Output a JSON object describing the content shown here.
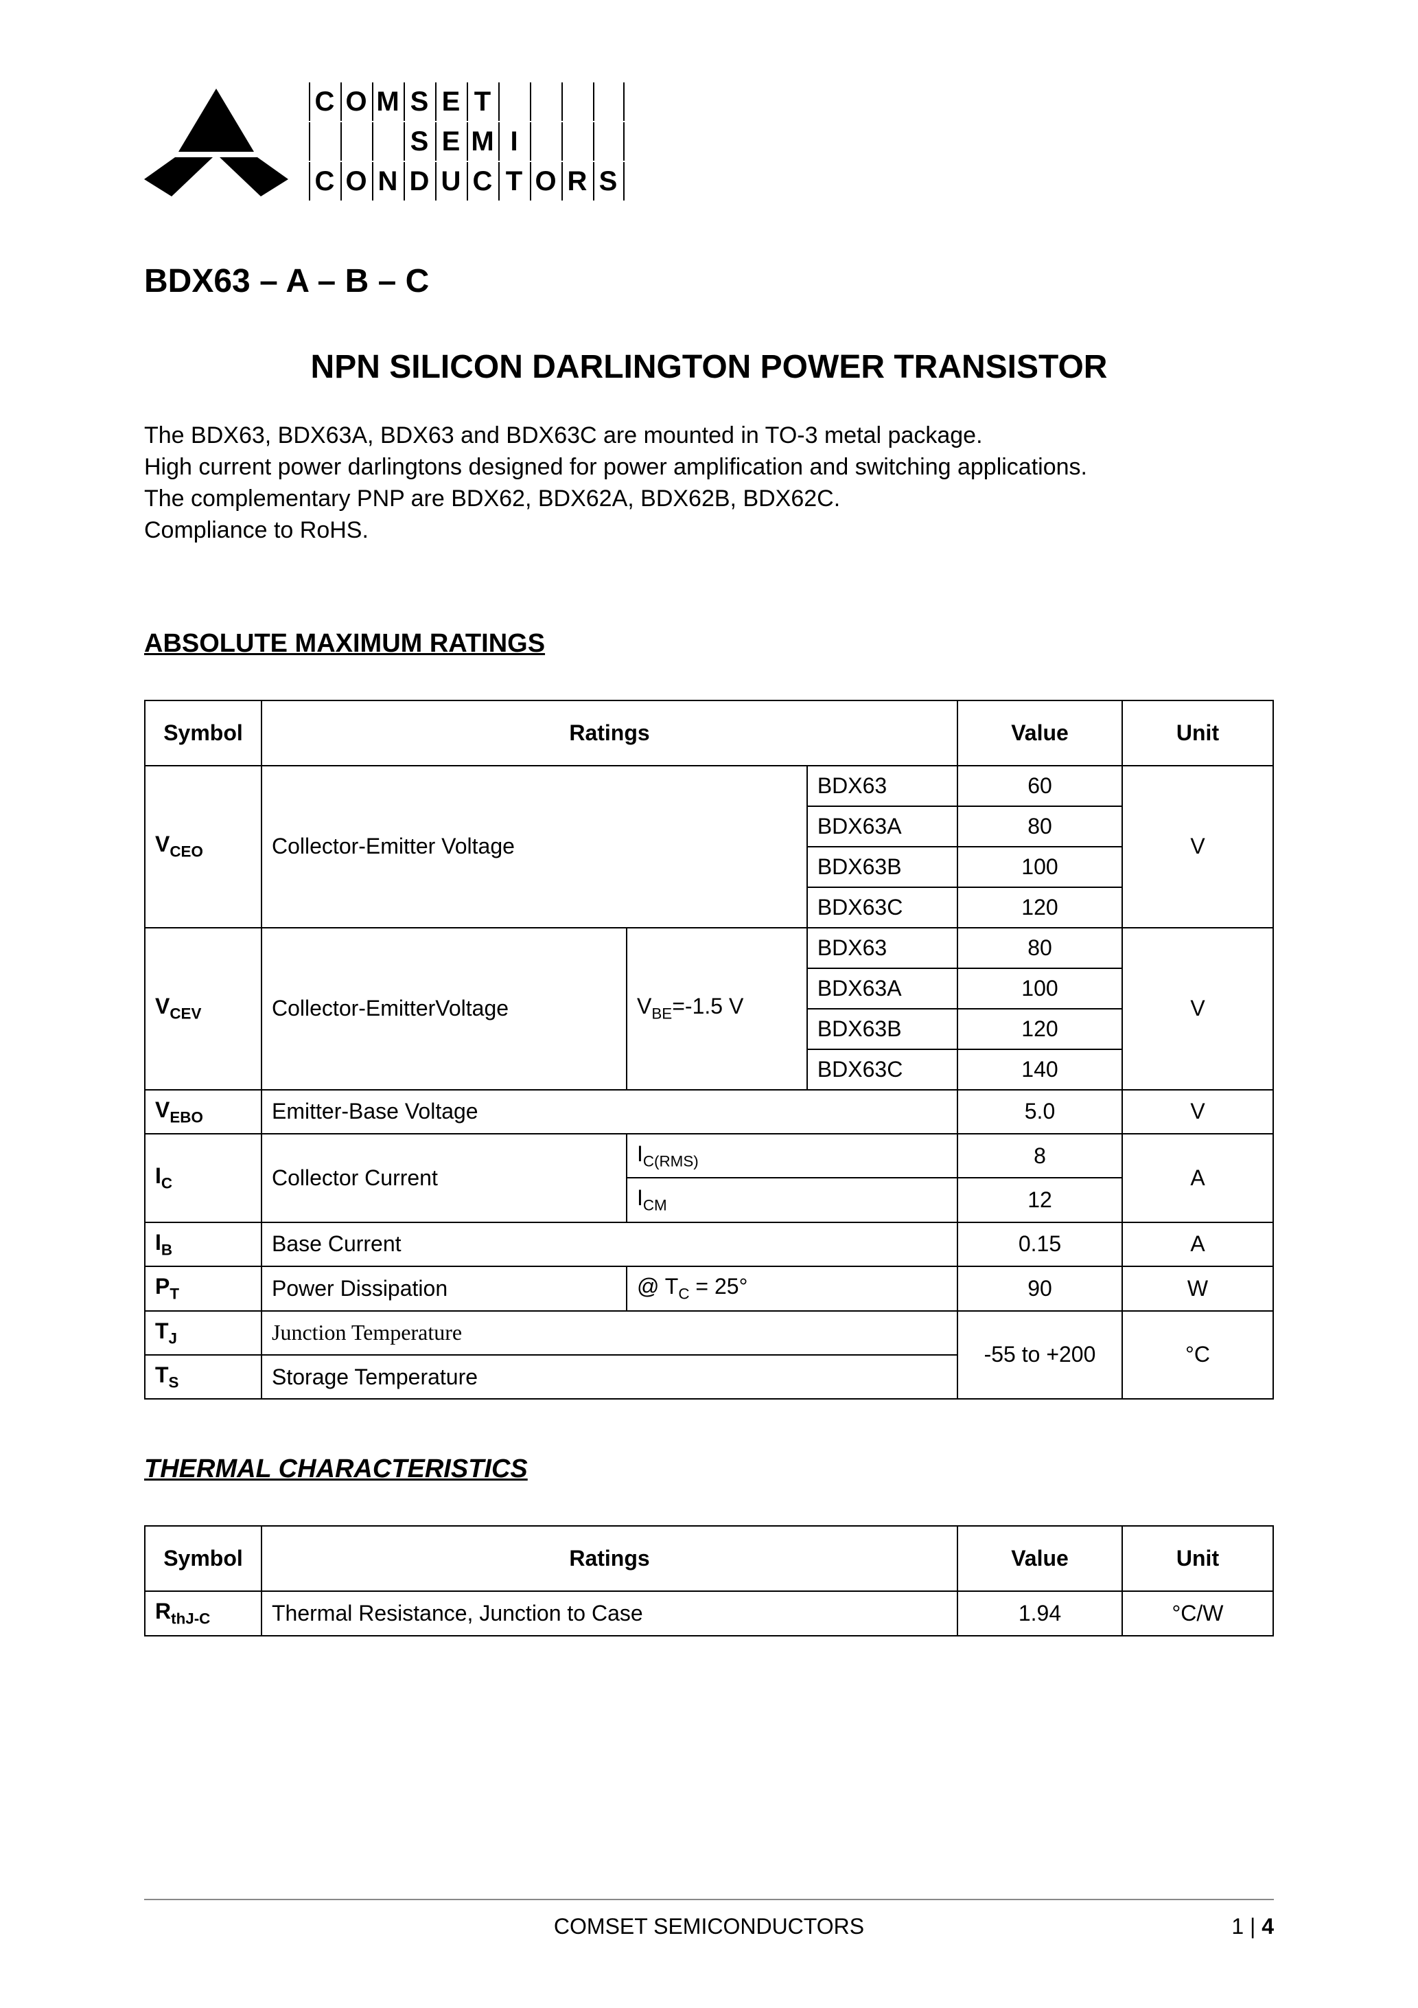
{
  "logo": {
    "row1": [
      "C",
      "O",
      "M",
      "S",
      "E",
      "T",
      "",
      "",
      "",
      ""
    ],
    "row2": [
      "",
      "",
      "",
      "S",
      "E",
      "M",
      "I",
      "",
      "",
      ""
    ],
    "row3": [
      "C",
      "O",
      "N",
      "D",
      "U",
      "C",
      "T",
      "O",
      "R",
      "S"
    ]
  },
  "part_number": "BDX63 – A – B – C",
  "title": "NPN SILICON DARLINGTON POWER TRANSISTOR",
  "description_lines": [
    "The BDX63, BDX63A, BDX63 and BDX63C are mounted in TO-3 metal package.",
    "High current power darlingtons designed for power amplification and switching applications.",
    "The complementary PNP are BDX62, BDX62A, BDX62B, BDX62C.",
    "Compliance to RoHS."
  ],
  "amr": {
    "heading": "ABSOLUTE MAXIMUM RATINGS",
    "headers": {
      "symbol": "Symbol",
      "ratings": "Ratings",
      "value": "Value",
      "unit": "Unit"
    },
    "vceo": {
      "symbol": "V",
      "sub": "CEO",
      "label": "Collector-Emitter Voltage",
      "rows": [
        {
          "part": "BDX63",
          "value": "60"
        },
        {
          "part": "BDX63A",
          "value": "80"
        },
        {
          "part": "BDX63B",
          "value": "100"
        },
        {
          "part": "BDX63C",
          "value": "120"
        }
      ],
      "unit": "V"
    },
    "vcev": {
      "symbol": "V",
      "sub": "CEV",
      "label": "Collector-EmitterVoltage",
      "cond_prefix": "V",
      "cond_sub": "BE",
      "cond_suffix": "=-1.5 V",
      "rows": [
        {
          "part": "BDX63",
          "value": "80"
        },
        {
          "part": "BDX63A",
          "value": "100"
        },
        {
          "part": "BDX63B",
          "value": "120"
        },
        {
          "part": "BDX63C",
          "value": "140"
        }
      ],
      "unit": "V"
    },
    "vebo": {
      "symbol": "V",
      "sub": "EBO",
      "label": "Emitter-Base Voltage",
      "value": "5.0",
      "unit": "V"
    },
    "ic": {
      "symbol": "I",
      "sub": "C",
      "label": "Collector Current",
      "rows": [
        {
          "cond_prefix": "I",
          "cond_sub": "C(RMS)",
          "value": "8"
        },
        {
          "cond_prefix": "I",
          "cond_sub": "CM",
          "value": "12"
        }
      ],
      "unit": "A"
    },
    "ib": {
      "symbol": "I",
      "sub": "B",
      "label": "Base Current",
      "value": "0.15",
      "unit": "A"
    },
    "pt": {
      "symbol": "P",
      "sub": "T",
      "label": "Power Dissipation",
      "cond_prefix": "@ T",
      "cond_sub": "C",
      "cond_suffix": " = 25°",
      "value": "90",
      "unit": "W"
    },
    "tj": {
      "symbol": "T",
      "sub": "J",
      "label": "Junction Temperature"
    },
    "ts": {
      "symbol": "T",
      "sub": "S",
      "label": "Storage Temperature"
    },
    "temp_value": "-55 to +200",
    "temp_unit": "°C"
  },
  "thermal": {
    "heading": "THERMAL CHARACTERISTICS",
    "headers": {
      "symbol": "Symbol",
      "ratings": "Ratings",
      "value": "Value",
      "unit": "Unit"
    },
    "row": {
      "symbol": "R",
      "sub": "thJ-C",
      "label": "Thermal Resistance, Junction to Case",
      "value": "1.94",
      "unit": "°C/W"
    }
  },
  "footer": {
    "center": "COMSET SEMICONDUCTORS",
    "page_current": "1",
    "page_sep": " | ",
    "page_total": "4"
  }
}
